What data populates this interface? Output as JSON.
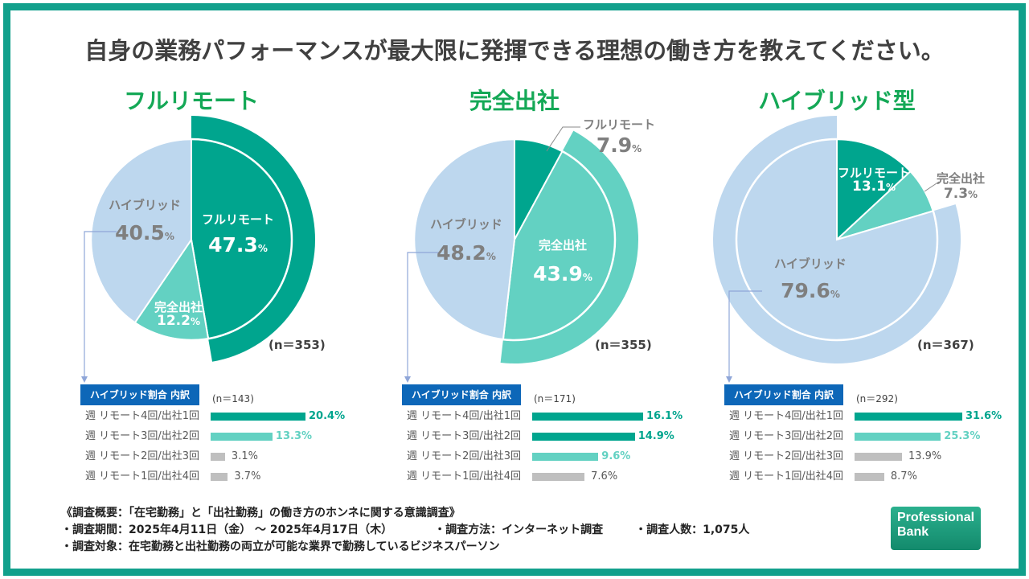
{
  "title": "自身の業務パフォーマンスが最大限に発揮できる理想の働き方を教えてください。",
  "colors": {
    "full_remote": "#00a58e",
    "office": "#63d1c2",
    "hybrid": "#bdd7ee",
    "gray": "#bfbfbf",
    "frame": "#12a08c",
    "title_green": "#14a856",
    "header_blue": "#0d67b8"
  },
  "chart_data": [
    {
      "type": "pie",
      "title": "フルリモート",
      "n": "(n＝353)",
      "highlight": "フルリモート",
      "slices": [
        {
          "label": "フルリモート",
          "value": 47.3
        },
        {
          "label": "完全出社",
          "value": 12.2
        },
        {
          "label": "ハイブリッド",
          "value": 40.5
        }
      ],
      "breakdown": {
        "header": "ハイブリッド割合 内訳",
        "n": "(n＝143)",
        "rows": [
          {
            "label": "週 リモート4回/出社1回",
            "value": 20.4,
            "color": "dark"
          },
          {
            "label": "週 リモート3回/出社2回",
            "value": 13.3,
            "color": "light"
          },
          {
            "label": "週 リモート2回/出社3回",
            "value": 3.1,
            "color": "gray"
          },
          {
            "label": "週 リモート1回/出社4回",
            "value": 3.7,
            "color": "gray"
          }
        ]
      }
    },
    {
      "type": "pie",
      "title": "完全出社",
      "n": "(n＝355)",
      "highlight": "完全出社",
      "slices": [
        {
          "label": "フルリモート",
          "value": 7.9
        },
        {
          "label": "完全出社",
          "value": 43.9
        },
        {
          "label": "ハイブリッド",
          "value": 48.2
        }
      ],
      "breakdown": {
        "header": "ハイブリッド割合 内訳",
        "n": "(n＝171)",
        "rows": [
          {
            "label": "週 リモート4回/出社1回",
            "value": 16.1,
            "color": "dark"
          },
          {
            "label": "週 リモート3回/出社2回",
            "value": 14.9,
            "color": "dark"
          },
          {
            "label": "週 リモート2回/出社3回",
            "value": 9.6,
            "color": "light"
          },
          {
            "label": "週 リモート1回/出社4回",
            "value": 7.6,
            "color": "gray"
          }
        ]
      }
    },
    {
      "type": "pie",
      "title": "ハイブリッド型",
      "n": "(n＝367)",
      "highlight": "ハイブリッド",
      "slices": [
        {
          "label": "フルリモート",
          "value": 13.1
        },
        {
          "label": "完全出社",
          "value": 7.3
        },
        {
          "label": "ハイブリッド",
          "value": 79.6
        }
      ],
      "breakdown": {
        "header": "ハイブリッド割合 内訳",
        "n": "(n＝292)",
        "rows": [
          {
            "label": "週 リモート4回/出社1回",
            "value": 31.6,
            "color": "dark"
          },
          {
            "label": "週 リモート3回/出社2回",
            "value": 25.3,
            "color": "light"
          },
          {
            "label": "週 リモート2回/出社3回",
            "value": 13.9,
            "color": "gray"
          },
          {
            "label": "週 リモート1回/出社4回",
            "value": 8.7,
            "color": "gray"
          }
        ]
      }
    }
  ],
  "footer": {
    "line1": "《調査概要：「在宅勤務」と「出社勤務」の働き方のホンネに関する意識調査》",
    "line2a": "・調査期間：2025年4月11日（金） ～ 2025年4月17日（木）",
    "line2b": "・調査方法：インターネット調査",
    "line2c": "・調査人数：1,075人",
    "line3": "・調査対象：在宅勤務と出社勤務の両立が可能な業界で勤務しているビジネスパーソン"
  },
  "logo": "Professional Bank"
}
